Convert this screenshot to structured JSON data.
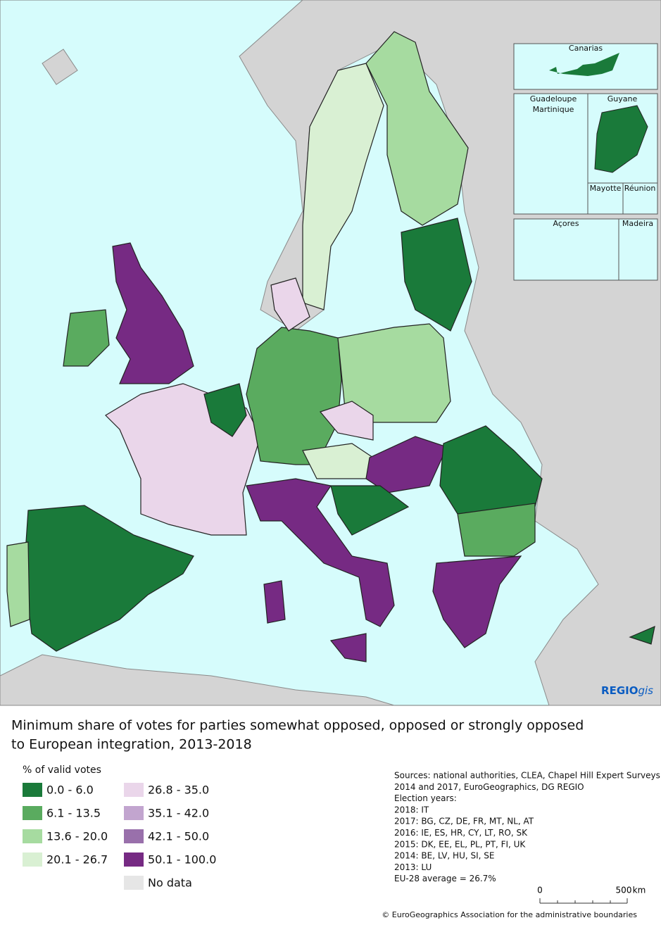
{
  "map": {
    "insets": [
      "Canarias",
      "Guadeloupe",
      "Martinique",
      "Guyane",
      "Mayotte",
      "Réunion",
      "Açores",
      "Madeira"
    ],
    "logo": {
      "bold": "REGIO",
      "italic": "gis"
    }
  },
  "title_lines": [
    "Minimum share of votes for parties somewhat opposed, opposed or strongly opposed",
    "to European integration, 2013-2018"
  ],
  "legend": {
    "title": "% of valid votes",
    "items": [
      {
        "label": "0.0 - 6.0",
        "color": "#1a7a3a"
      },
      {
        "label": "6.1 - 13.5",
        "color": "#5aab5f"
      },
      {
        "label": "13.6 - 20.0",
        "color": "#a6dba0"
      },
      {
        "label": "20.1 - 26.7",
        "color": "#d9f0d3"
      },
      {
        "label": "26.8 - 35.0",
        "color": "#ead6ea"
      },
      {
        "label": "35.1 - 42.0",
        "color": "#c2a5cf"
      },
      {
        "label": "42.1 - 50.0",
        "color": "#9970ab"
      },
      {
        "label": "50.1 - 100.0",
        "color": "#762a83"
      },
      {
        "label": "No data",
        "color": "#e6e6e6"
      }
    ]
  },
  "sources": [
    "Sources: national authorities, CLEA, Chapel Hill Expert Surveys",
    "2014 and 2017, EuroGeographics, DG REGIO",
    "Election years:",
    "2018: IT",
    "2017: BG, CZ, DE, FR, MT, NL, AT",
    "2016: IE, ES, HR, CY, LT, RO, SK",
    "2015: DK, EE, EL, PL, PT, FI, UK",
    "2014: BE, LV, HU, SI, SE",
    "2013: LU",
    "EU-28 average = 26.7%"
  ],
  "scale": {
    "zero": "0",
    "max": "500",
    "unit": "km"
  },
  "copyright": "© EuroGeographics Association for the administrative boundaries"
}
